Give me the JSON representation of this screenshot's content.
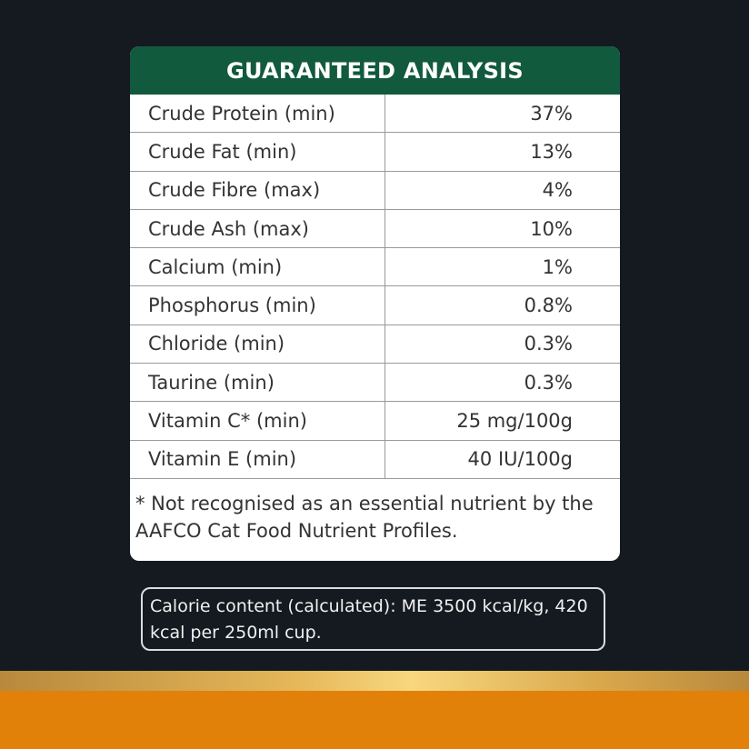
{
  "title": "GUARANTEED ANALYSIS",
  "rows": [
    {
      "name": "Crude Protein (min)",
      "value": "37%"
    },
    {
      "name": "Crude Fat (min)",
      "value": "13%"
    },
    {
      "name": "Crude Fibre (max)",
      "value": "4%"
    },
    {
      "name": "Crude Ash (max)",
      "value": "10%"
    },
    {
      "name": "Calcium (min)",
      "value": "1%"
    },
    {
      "name": "Phosphorus (min)",
      "value": "0.8%"
    },
    {
      "name": "Chloride (min)",
      "value": "0.3%"
    },
    {
      "name": "Taurine (min)",
      "value": "0.3%"
    },
    {
      "name": "Vitamin C* (min)",
      "value": "25 mg/100g"
    },
    {
      "name": "Vitamin E (min)",
      "value": "40 IU/100g"
    }
  ],
  "footnote": "* Not recognised as an essential nutrient by the AAFCO Cat Food Nutrient Profiles.",
  "calorie": "Calorie content (calculated): ME 3500 kcal/kg, 420 kcal per 250ml cup.",
  "colors": {
    "header": "#125a3d",
    "background": "#141a20",
    "band": "#e2810a"
  }
}
